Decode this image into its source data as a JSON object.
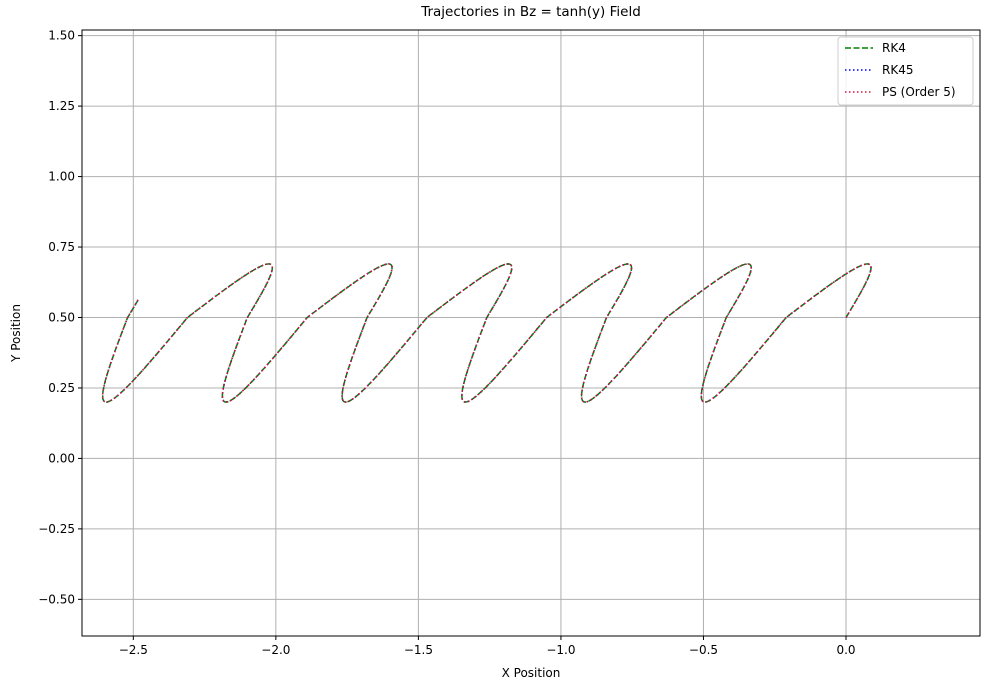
{
  "chart_data": {
    "type": "line",
    "title": "Trajectories in Bz = tanh(y) Field",
    "xlabel": "X Position",
    "ylabel": "Y Position",
    "xlim": [
      -2.68,
      0.47
    ],
    "ylim": [
      -0.63,
      1.52
    ],
    "xticks": [
      -2.5,
      -2.0,
      -1.5,
      -1.0,
      -0.5,
      0.0
    ],
    "xtick_labels": [
      "−2.5",
      "−2.0",
      "−1.5",
      "−1.0",
      "−0.5",
      "0.0"
    ],
    "yticks": [
      -0.5,
      -0.25,
      0.0,
      0.25,
      0.5,
      0.75,
      1.0,
      1.25,
      1.5
    ],
    "ytick_labels": [
      "−0.50",
      "−0.25",
      "0.00",
      "0.25",
      "0.50",
      "0.75",
      "1.00",
      "1.25",
      "1.50"
    ],
    "grid": true,
    "legend_position": "top-right",
    "trajectory": {
      "start": [
        0.0,
        0.5
      ],
      "end": [
        -2.53,
        0.57
      ],
      "loops": 6,
      "loop_drift_x": -0.42,
      "y_min": 0.2,
      "y_max": 0.69,
      "loop_center_y": 0.5,
      "loop_centers_x": [
        0.17,
        -0.25,
        -0.67,
        -1.09,
        -1.51,
        -1.93
      ],
      "lower_arc_minima_x": [
        -0.03,
        -0.45,
        -0.88,
        -1.3,
        -1.72,
        -2.14
      ]
    },
    "series": [
      {
        "name": "RK4",
        "color": "#008000",
        "style": "dashed"
      },
      {
        "name": "RK45",
        "color": "#0000ff",
        "style": "dotted"
      },
      {
        "name": "PS (Order 5)",
        "color": "#dc143c",
        "style": "dotted"
      }
    ]
  }
}
